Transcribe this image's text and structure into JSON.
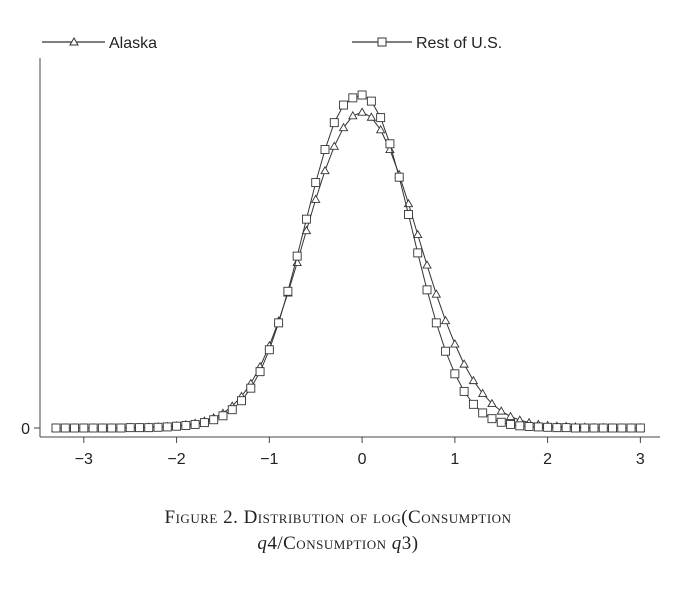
{
  "chart_data": {
    "type": "line",
    "title": "",
    "xlabel": "",
    "ylabel": "",
    "xlim": [
      -3.3,
      3.05
    ],
    "ylim": [
      0,
      1.02
    ],
    "x_ticks": [
      -3,
      -2,
      -1,
      0,
      1,
      2,
      3
    ],
    "x_tick_labels": [
      "−3",
      "−2",
      "−1",
      "0",
      "1",
      "2",
      "3"
    ],
    "y_ticks": [
      0
    ],
    "y_tick_labels": [
      "0"
    ],
    "grid": false,
    "legend_position": "top",
    "series": [
      {
        "name": "Alaska",
        "marker": "triangle",
        "x": [
          -3.3,
          -3.2,
          -3.1,
          -3.0,
          -2.9,
          -2.8,
          -2.7,
          -2.6,
          -2.5,
          -2.4,
          -2.3,
          -2.2,
          -2.1,
          -2.0,
          -1.9,
          -1.8,
          -1.7,
          -1.6,
          -1.5,
          -1.4,
          -1.3,
          -1.2,
          -1.1,
          -1.0,
          -0.9,
          -0.8,
          -0.7,
          -0.6,
          -0.5,
          -0.4,
          -0.3,
          -0.2,
          -0.1,
          0.0,
          0.1,
          0.2,
          0.3,
          0.4,
          0.5,
          0.6,
          0.7,
          0.8,
          0.9,
          1.0,
          1.1,
          1.2,
          1.3,
          1.4,
          1.5,
          1.6,
          1.7,
          1.8,
          1.9,
          2.0,
          2.1,
          2.2,
          2.3,
          2.4,
          2.5,
          2.6,
          2.7,
          2.8,
          2.9,
          3.0
        ],
        "values": [
          0.0,
          0.0,
          0.0,
          0.0,
          0.0,
          0.0,
          0.0,
          0.0,
          0.001,
          0.001,
          0.002,
          0.003,
          0.004,
          0.006,
          0.009,
          0.013,
          0.019,
          0.028,
          0.041,
          0.061,
          0.088,
          0.124,
          0.171,
          0.229,
          0.298,
          0.376,
          0.461,
          0.55,
          0.637,
          0.717,
          0.785,
          0.837,
          0.87,
          0.88,
          0.866,
          0.831,
          0.776,
          0.706,
          0.625,
          0.539,
          0.454,
          0.373,
          0.299,
          0.234,
          0.178,
          0.132,
          0.096,
          0.068,
          0.047,
          0.032,
          0.022,
          0.015,
          0.01,
          0.007,
          0.005,
          0.004,
          0.003,
          0.002,
          0.001,
          0.001,
          0.0,
          0.0,
          0.0,
          0.0
        ]
      },
      {
        "name": "Rest of U.S.",
        "marker": "square",
        "x": [
          -3.3,
          -3.2,
          -3.1,
          -3.0,
          -2.9,
          -2.8,
          -2.7,
          -2.6,
          -2.5,
          -2.4,
          -2.3,
          -2.2,
          -2.1,
          -2.0,
          -1.9,
          -1.8,
          -1.7,
          -1.6,
          -1.5,
          -1.4,
          -1.3,
          -1.2,
          -1.1,
          -1.0,
          -0.9,
          -0.8,
          -0.7,
          -0.6,
          -0.5,
          -0.4,
          -0.3,
          -0.2,
          -0.1,
          0.0,
          0.1,
          0.2,
          0.3,
          0.4,
          0.5,
          0.6,
          0.7,
          0.8,
          0.9,
          1.0,
          1.1,
          1.2,
          1.3,
          1.4,
          1.5,
          1.6,
          1.7,
          1.8,
          1.9,
          2.0,
          2.1,
          2.2,
          2.3,
          2.4,
          2.5,
          2.6,
          2.7,
          2.8,
          2.9,
          3.0
        ],
        "values": [
          0.0,
          0.0,
          0.0,
          0.0,
          0.0,
          0.0,
          0.0,
          0.0,
          0.001,
          0.001,
          0.001,
          0.002,
          0.003,
          0.005,
          0.007,
          0.01,
          0.015,
          0.023,
          0.034,
          0.051,
          0.076,
          0.111,
          0.157,
          0.218,
          0.293,
          0.381,
          0.479,
          0.582,
          0.684,
          0.776,
          0.851,
          0.9,
          0.92,
          0.928,
          0.911,
          0.865,
          0.792,
          0.699,
          0.595,
          0.488,
          0.385,
          0.293,
          0.214,
          0.151,
          0.102,
          0.066,
          0.042,
          0.026,
          0.016,
          0.01,
          0.006,
          0.004,
          0.003,
          0.002,
          0.001,
          0.001,
          0.0,
          0.0,
          0.0,
          0.0,
          0.0,
          0.0,
          0.0,
          0.0
        ]
      }
    ]
  },
  "caption": {
    "line1": "Figure 2. Distribution of log(Consumption",
    "line2_var1": "q",
    "line2_num1": "4",
    "line2_sep": "/Consumption ",
    "line2_var2": "q",
    "line2_num2": "3)"
  }
}
